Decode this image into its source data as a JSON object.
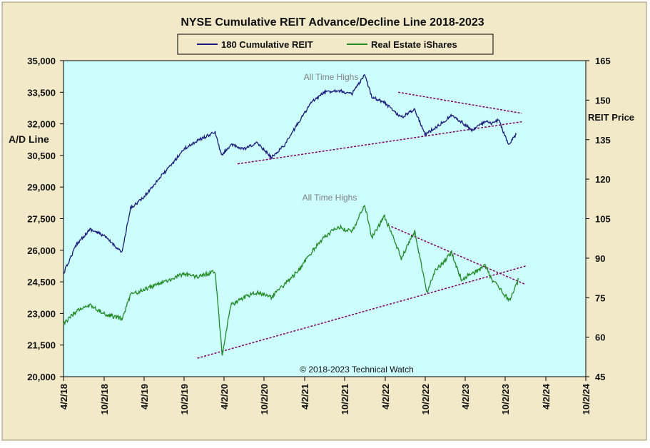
{
  "chart_data": {
    "type": "line",
    "title": "NYSE Cumulative  REIT Advance/Decline Line 2018-2023",
    "ylabel_left": "A/D Line",
    "ylabel_right": "REIT Price",
    "copyright": "© 2018-2023  Technical Watch",
    "annotations": [
      "All Time Highs",
      "All Time Highs"
    ],
    "legend": [
      "180 Cumulative REIT",
      "Real Estate iShares"
    ],
    "y_left": {
      "min": 20000,
      "max": 35000,
      "ticks": [
        "20,000",
        "21,500",
        "23,000",
        "24,500",
        "26,000",
        "27,500",
        "29,000",
        "30,500",
        "32,000",
        "33,500",
        "35,000"
      ]
    },
    "y_right": {
      "min": 45,
      "max": 165,
      "ticks": [
        "45",
        "60",
        "75",
        "90",
        "105",
        "120",
        "135",
        "150",
        "165"
      ]
    },
    "x_ticks": [
      "4/2/18",
      "10/2/18",
      "4/2/19",
      "10/2/19",
      "4/2/20",
      "10/2/20",
      "4/2/21",
      "10/2/21",
      "4/2/22",
      "10/2/22",
      "4/2/23",
      "10/2/23",
      "4/2/24",
      "10/2/24"
    ],
    "series": [
      {
        "name": "180 Cumulative REIT",
        "axis": "left",
        "color": "#1a1a80",
        "x_dates": [
          "2018-04-02",
          "2018-06-01",
          "2018-08-01",
          "2018-10-01",
          "2018-12-24",
          "2019-02-01",
          "2019-04-01",
          "2019-06-01",
          "2019-08-01",
          "2019-10-01",
          "2019-12-01",
          "2020-02-20",
          "2020-03-20",
          "2020-05-01",
          "2020-07-01",
          "2020-09-01",
          "2020-11-01",
          "2021-01-01",
          "2021-03-01",
          "2021-05-01",
          "2021-07-01",
          "2021-09-01",
          "2021-11-01",
          "2021-12-31",
          "2022-02-01",
          "2022-04-01",
          "2022-06-15",
          "2022-08-15",
          "2022-10-01",
          "2022-11-15",
          "2023-01-30",
          "2023-03-15",
          "2023-05-01",
          "2023-07-01",
          "2023-08-01",
          "2023-09-01",
          "2023-10-15",
          "2023-11-20"
        ],
        "values": [
          24900,
          26300,
          27000,
          26700,
          25900,
          28000,
          28500,
          29300,
          30000,
          30800,
          31200,
          31600,
          30500,
          31000,
          30800,
          31100,
          30400,
          31000,
          32000,
          33000,
          33500,
          33600,
          33400,
          34300,
          33300,
          33000,
          32300,
          32700,
          31500,
          31800,
          32400,
          32100,
          31700,
          32100,
          32000,
          32200,
          31000,
          31500
        ]
      },
      {
        "name": "Real Estate iShares",
        "axis": "right",
        "color": "#228b22",
        "x_dates": [
          "2018-04-02",
          "2018-06-01",
          "2018-08-01",
          "2018-10-01",
          "2018-12-24",
          "2019-02-01",
          "2019-04-01",
          "2019-06-01",
          "2019-08-01",
          "2019-10-01",
          "2019-12-01",
          "2020-02-20",
          "2020-03-23",
          "2020-05-01",
          "2020-07-01",
          "2020-09-01",
          "2020-11-01",
          "2021-01-01",
          "2021-03-01",
          "2021-05-01",
          "2021-07-01",
          "2021-09-01",
          "2021-11-01",
          "2021-12-31",
          "2022-02-01",
          "2022-03-31",
          "2022-06-15",
          "2022-08-15",
          "2022-10-10",
          "2022-11-15",
          "2023-01-30",
          "2023-03-15",
          "2023-05-01",
          "2023-07-01",
          "2023-08-01",
          "2023-10-20",
          "2023-12-01"
        ],
        "values": [
          65,
          70,
          72,
          69,
          67,
          76,
          78,
          80,
          82,
          84,
          83,
          85,
          53,
          72,
          75,
          77,
          75,
          80,
          85,
          92,
          98,
          102,
          100,
          110,
          98,
          106,
          90,
          100,
          77,
          85,
          92,
          82,
          84,
          87,
          82,
          74,
          82
        ]
      }
    ],
    "trendlines": [
      {
        "axis": "left",
        "x_dates": [
          "2020-06-01",
          "2023-12-15"
        ],
        "values": [
          30100,
          32100
        ]
      },
      {
        "axis": "left",
        "x_dates": [
          "2022-06-01",
          "2023-12-15"
        ],
        "values": [
          33500,
          32500
        ]
      },
      {
        "axis": "right",
        "x_dates": [
          "2019-12-01",
          "2024-01-01"
        ],
        "values": [
          52,
          87
        ]
      },
      {
        "axis": "right",
        "x_dates": [
          "2022-05-01",
          "2024-01-01"
        ],
        "values": [
          102,
          80
        ]
      }
    ]
  }
}
